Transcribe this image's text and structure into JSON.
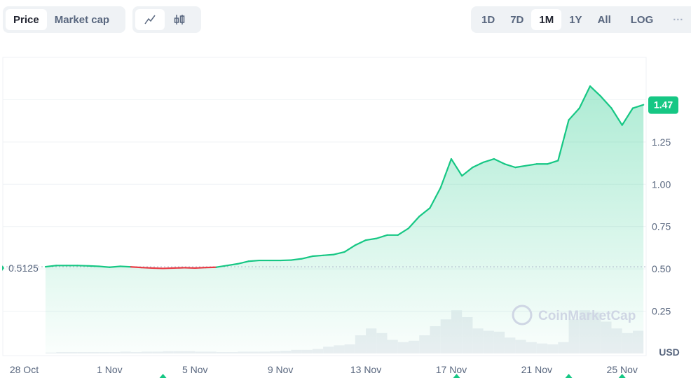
{
  "toolbar": {
    "type_tabs": [
      {
        "label": "Price",
        "active": true
      },
      {
        "label": "Market cap",
        "active": false
      }
    ],
    "chart_style": [
      {
        "icon": "line-chart-icon",
        "active": true
      },
      {
        "icon": "candlestick-icon",
        "active": false
      }
    ],
    "ranges": [
      {
        "label": "1D",
        "active": false
      },
      {
        "label": "7D",
        "active": false
      },
      {
        "label": "1M",
        "active": true
      },
      {
        "label": "1Y",
        "active": false
      },
      {
        "label": "All",
        "active": false
      }
    ],
    "log_label": "LOG",
    "more_label": "···"
  },
  "chart_data": {
    "type": "area",
    "currency_label": "USD",
    "watermark": "CoinMarketCap",
    "current_price_label": "1.47",
    "baseline": {
      "value": 0.5125,
      "label": "0.5125"
    },
    "colors": {
      "up": "#16c784",
      "down": "#ea3943",
      "badge": "#16c784"
    },
    "ylim": [
      0,
      1.75
    ],
    "yticks": [
      {
        "v": 0.25,
        "label": "0.25"
      },
      {
        "v": 0.5,
        "label": "0.50"
      },
      {
        "v": 0.75,
        "label": "0.75"
      },
      {
        "v": 1.0,
        "label": "1.00"
      },
      {
        "v": 1.25,
        "label": "1.25"
      },
      {
        "v": 1.5,
        "label": ""
      }
    ],
    "xticks": [
      {
        "date": "10-28",
        "label": "28 Oct"
      },
      {
        "date": "11-01",
        "label": "1 Nov"
      },
      {
        "date": "11-05",
        "label": "5 Nov"
      },
      {
        "date": "11-09",
        "label": "9 Nov"
      },
      {
        "date": "11-13",
        "label": "13 Nov"
      },
      {
        "date": "11-17",
        "label": "17 Nov"
      },
      {
        "date": "11-21",
        "label": "21 Nov"
      },
      {
        "date": "11-25",
        "label": "25 Nov"
      }
    ],
    "xlim": [
      "10-27 00:00",
      "11-26 03:00"
    ],
    "markers": [
      "11-03 12:00",
      "11-17 06:00",
      "11-22 12:00",
      "11-25 00:00"
    ],
    "grid": true,
    "series": [
      {
        "dates": [
          "10-29 00:00",
          "10-29 12:00",
          "10-30 00:00",
          "10-30 12:00",
          "10-31 00:00",
          "10-31 12:00",
          "11-01 00:00",
          "11-01 12:00",
          "11-02 00:00",
          "11-02 12:00",
          "11-03 00:00",
          "11-03 12:00",
          "11-04 00:00",
          "11-04 12:00",
          "11-05 00:00",
          "11-05 12:00",
          "11-06 00:00",
          "11-06 12:00",
          "11-07 00:00",
          "11-07 12:00",
          "11-08 00:00",
          "11-08 12:00",
          "11-09 00:00",
          "11-09 12:00",
          "11-10 00:00",
          "11-10 12:00",
          "11-11 00:00",
          "11-11 12:00",
          "11-12 00:00",
          "11-12 12:00",
          "11-13 00:00",
          "11-13 12:00",
          "11-14 00:00",
          "11-14 12:00",
          "11-15 00:00",
          "11-15 12:00",
          "11-16 00:00",
          "11-16 12:00",
          "11-17 00:00",
          "11-17 12:00",
          "11-18 00:00",
          "11-18 12:00",
          "11-19 00:00",
          "11-19 12:00",
          "11-20 00:00",
          "11-20 12:00",
          "11-21 00:00",
          "11-21 12:00",
          "11-22 00:00",
          "11-22 12:00",
          "11-23 00:00",
          "11-23 12:00",
          "11-24 00:00",
          "11-24 12:00",
          "11-25 00:00",
          "11-25 12:00",
          "11-26 00:00"
        ],
        "values": [
          0.5125,
          0.52,
          0.52,
          0.52,
          0.518,
          0.515,
          0.51,
          0.515,
          0.512,
          0.508,
          0.505,
          0.503,
          0.505,
          0.507,
          0.505,
          0.508,
          0.51,
          0.52,
          0.53,
          0.545,
          0.55,
          0.55,
          0.55,
          0.552,
          0.56,
          0.575,
          0.58,
          0.585,
          0.6,
          0.64,
          0.67,
          0.68,
          0.7,
          0.7,
          0.74,
          0.81,
          0.86,
          0.98,
          1.15,
          1.05,
          1.1,
          1.13,
          1.15,
          1.12,
          1.1,
          1.11,
          1.12,
          1.12,
          1.14,
          1.38,
          1.45,
          1.58,
          1.52,
          1.45,
          1.35,
          1.45,
          1.47
        ],
        "volume_relative": [
          0.02,
          0.03,
          0.03,
          0.03,
          0.03,
          0.03,
          0.03,
          0.04,
          0.03,
          0.04,
          0.04,
          0.05,
          0.05,
          0.05,
          0.04,
          0.04,
          0.03,
          0.03,
          0.04,
          0.04,
          0.04,
          0.05,
          0.06,
          0.08,
          0.08,
          0.1,
          0.15,
          0.18,
          0.2,
          0.4,
          0.55,
          0.45,
          0.3,
          0.25,
          0.28,
          0.4,
          0.6,
          0.75,
          0.95,
          0.8,
          0.55,
          0.5,
          0.48,
          0.35,
          0.3,
          0.25,
          0.22,
          0.2,
          0.25,
          0.75,
          0.95,
          0.9,
          0.7,
          0.55,
          0.45,
          0.5,
          0.48
        ]
      }
    ]
  }
}
